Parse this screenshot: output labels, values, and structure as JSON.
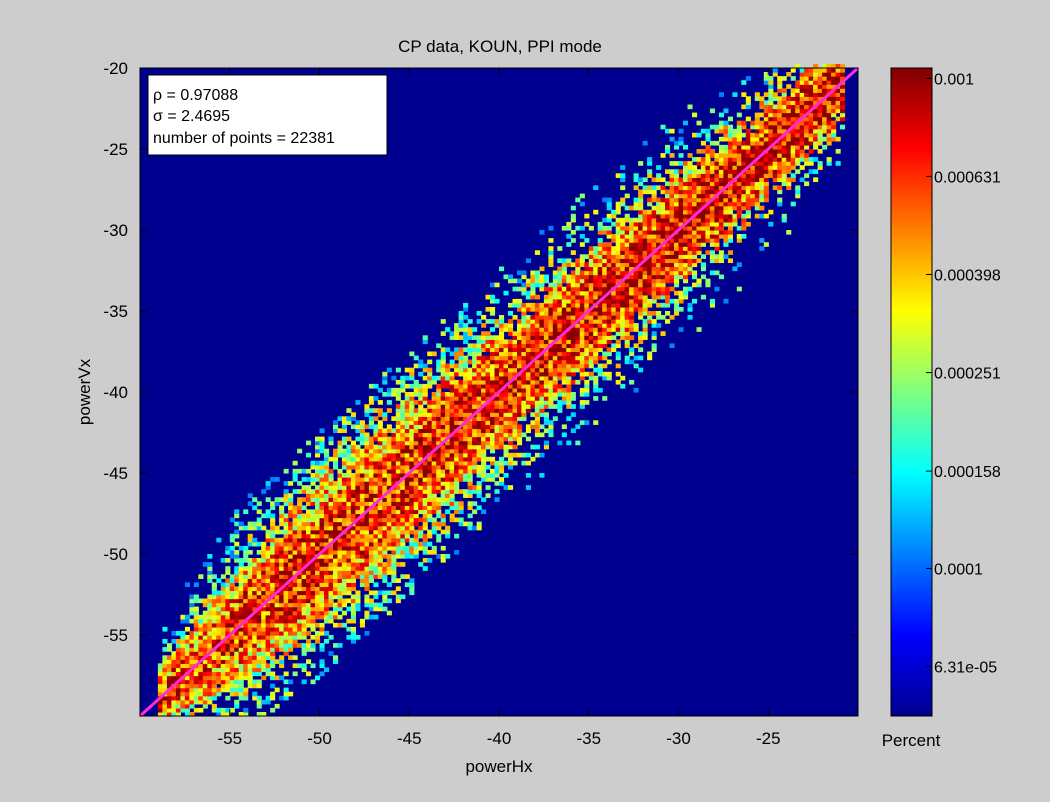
{
  "chart_data": {
    "type": "heatmap",
    "title": "CP data, KOUN, PPI mode",
    "xlabel": "powerHx",
    "ylabel": "powerVx",
    "xlim": [
      -60,
      -20
    ],
    "ylim": [
      -60,
      -20
    ],
    "xticks": [
      -55,
      -50,
      -45,
      -40,
      -35,
      -30,
      -25
    ],
    "yticks": [
      -20,
      -25,
      -30,
      -35,
      -40,
      -45,
      -50,
      -55
    ],
    "grid": false,
    "colormap": "jet",
    "background_color": "#00008f",
    "fit_line": {
      "x": [
        -60,
        -20
      ],
      "y": [
        -60,
        -20
      ],
      "color": "#ff2bd6"
    },
    "density_band": {
      "description_values": {
        "x_start": -59,
        "x_end": -21,
        "slope": 1.0
      }
    },
    "annotations": [
      "ρ = 0.97088",
      "σ = 2.4695",
      "number of points = 22381"
    ],
    "colorbar": {
      "label": "Percent",
      "range": [
        5e-05,
        0.00105
      ],
      "ticks": [
        "0.001",
        "0.000631",
        "0.000398",
        "0.000251",
        "0.000158",
        "0.0001",
        "6.31e-05"
      ]
    }
  }
}
